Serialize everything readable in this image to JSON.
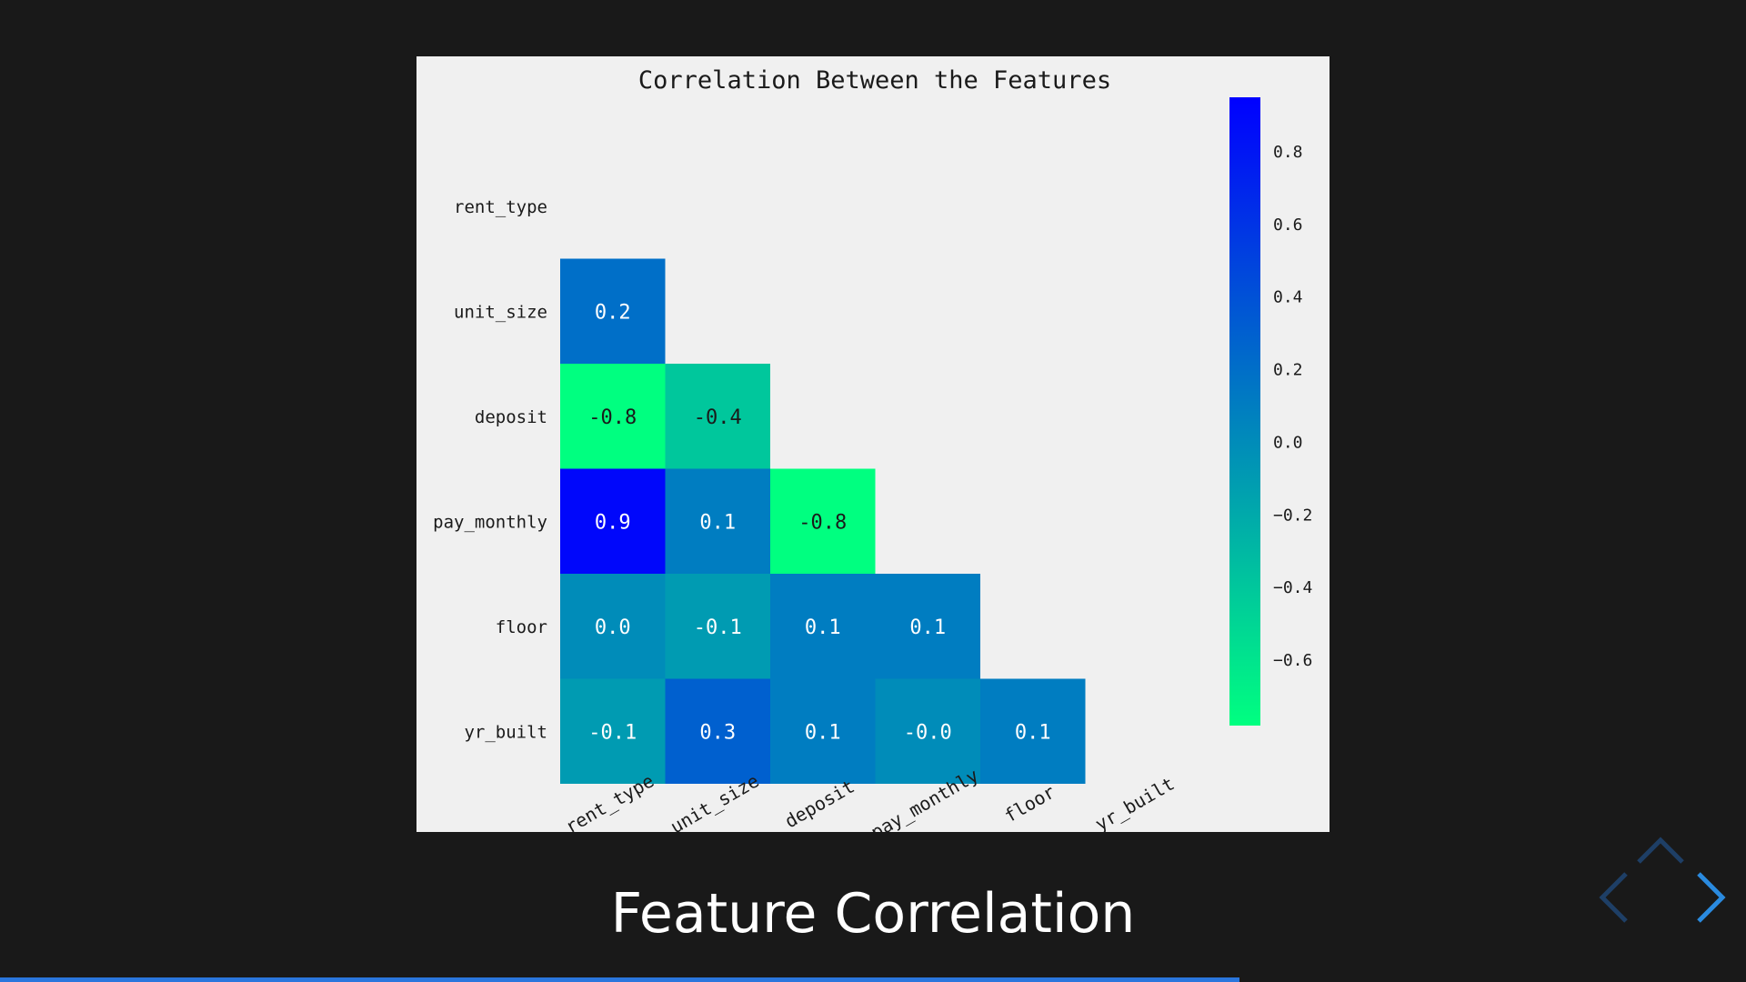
{
  "slide": {
    "title": "Feature Correlation",
    "progress": 0.71
  },
  "navigation": {
    "prev_icon": "chevron-left-icon",
    "next_icon": "chevron-right-icon",
    "up_icon": "chevron-up-icon",
    "prev_color": "#1e3f66",
    "next_color": "#2a8adf",
    "up_color": "#1e3f66"
  },
  "colors": {
    "background": "#191919",
    "panel": "#f0f0f0",
    "progress": "#2a76dd",
    "cmap_low": "#00ff80",
    "cmap_high": "#0000ff"
  },
  "chart_data": {
    "type": "heatmap",
    "title": "Correlation Between the Features",
    "variables": [
      "rent_type",
      "unit_size",
      "deposit",
      "pay_monthly",
      "floor",
      "yr_built"
    ],
    "mask": "upper-triangle-and-diagonal",
    "cells": [
      {
        "row": "unit_size",
        "col": "rent_type",
        "value": 0.2,
        "label": "0.2"
      },
      {
        "row": "deposit",
        "col": "rent_type",
        "value": -0.8,
        "label": "-0.8"
      },
      {
        "row": "deposit",
        "col": "unit_size",
        "value": -0.4,
        "label": "-0.4"
      },
      {
        "row": "pay_monthly",
        "col": "rent_type",
        "value": 0.9,
        "label": "0.9"
      },
      {
        "row": "pay_monthly",
        "col": "unit_size",
        "value": 0.1,
        "label": "0.1"
      },
      {
        "row": "pay_monthly",
        "col": "deposit",
        "value": -0.8,
        "label": "-0.8"
      },
      {
        "row": "floor",
        "col": "rent_type",
        "value": 0.0,
        "label": "0.0"
      },
      {
        "row": "floor",
        "col": "unit_size",
        "value": -0.1,
        "label": "-0.1"
      },
      {
        "row": "floor",
        "col": "deposit",
        "value": 0.1,
        "label": "0.1"
      },
      {
        "row": "floor",
        "col": "pay_monthly",
        "value": 0.1,
        "label": "0.1"
      },
      {
        "row": "yr_built",
        "col": "rent_type",
        "value": -0.1,
        "label": "-0.1"
      },
      {
        "row": "yr_built",
        "col": "unit_size",
        "value": 0.3,
        "label": "0.3"
      },
      {
        "row": "yr_built",
        "col": "deposit",
        "value": 0.1,
        "label": "0.1"
      },
      {
        "row": "yr_built",
        "col": "pay_monthly",
        "value": -0.0,
        "label": "-0.0"
      },
      {
        "row": "yr_built",
        "col": "floor",
        "value": 0.1,
        "label": "0.1"
      }
    ],
    "colorbar": {
      "colormap": "winter_r",
      "vmin": -0.78,
      "vmax": 0.95,
      "ticks": [
        0.8,
        0.6,
        0.4,
        0.2,
        0.0,
        -0.2,
        -0.4,
        -0.6
      ],
      "tick_labels": [
        "0.8",
        "0.6",
        "0.4",
        "0.2",
        "0.0",
        "−0.2",
        "−0.4",
        "−0.6"
      ]
    }
  }
}
